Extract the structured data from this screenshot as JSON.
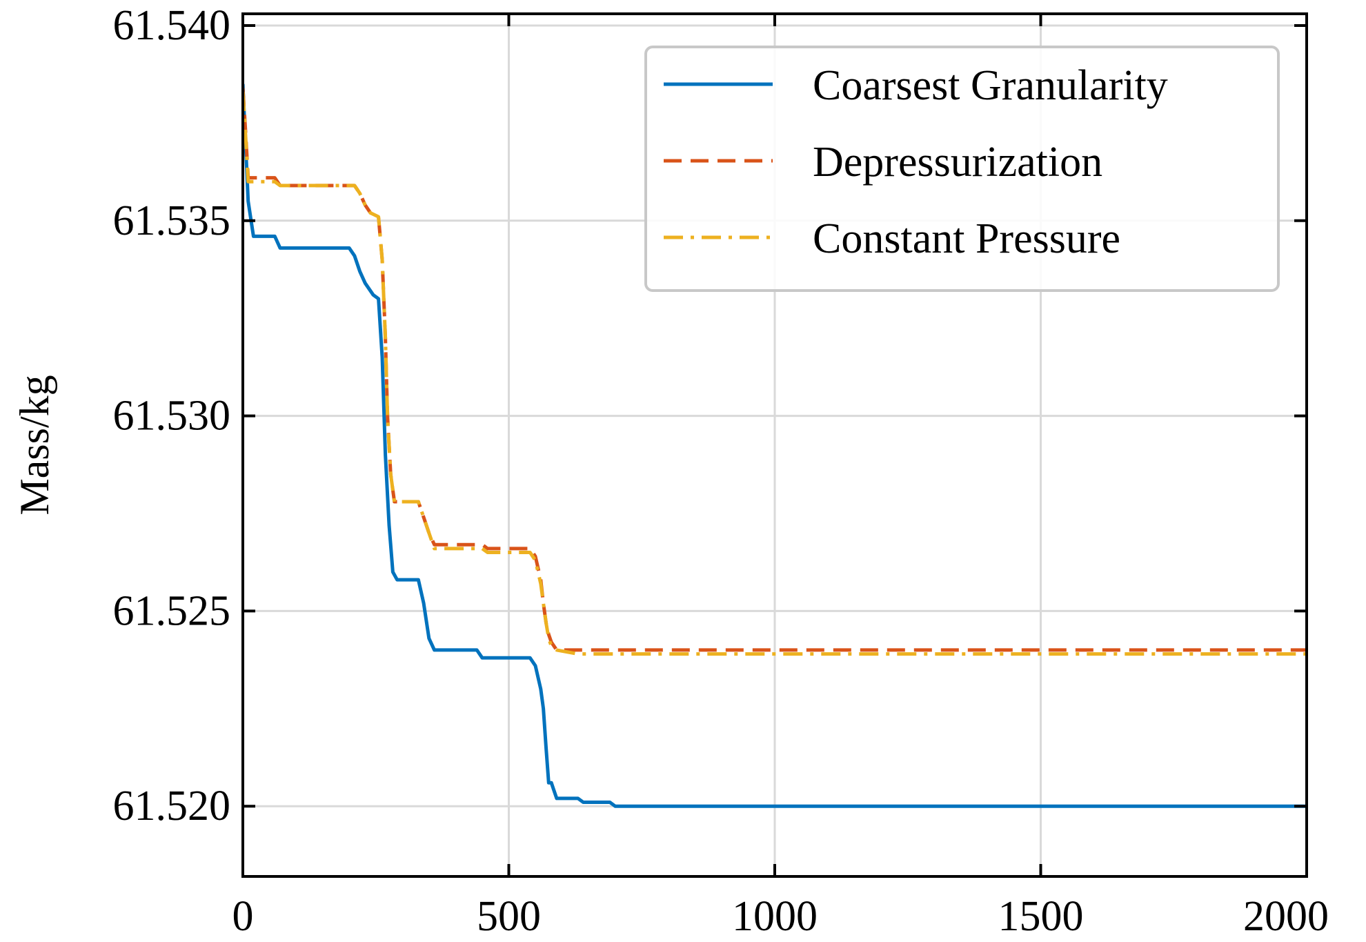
{
  "chart_data": {
    "type": "line",
    "title": "",
    "xlabel": "",
    "ylabel": "Mass/kg",
    "xlim": [
      0,
      2000
    ],
    "ylim": [
      61.5182,
      61.5403
    ],
    "grid": true,
    "legend_position": "top-right",
    "x_ticks": [
      0,
      500,
      1000,
      1500,
      2000
    ],
    "x_tick_labels": [
      "0",
      "500",
      "1000",
      "1500",
      "2000"
    ],
    "y_ticks": [
      61.52,
      61.525,
      61.53,
      61.535,
      61.54
    ],
    "y_tick_labels": [
      "61.520",
      "61.525",
      "61.530",
      "61.535",
      "61.540"
    ],
    "series": [
      {
        "name": "Coarsest Granularity",
        "color": "#0072BD",
        "style": "solid",
        "x": [
          0,
          5,
          10,
          20,
          30,
          60,
          70,
          100,
          150,
          200,
          210,
          220,
          230,
          245,
          255,
          262,
          268,
          275,
          282,
          290,
          300,
          320,
          330,
          340,
          350,
          360,
          400,
          440,
          450,
          480,
          510,
          540,
          550,
          560,
          565,
          570,
          575,
          580,
          585,
          590,
          600,
          630,
          640,
          660,
          690,
          700,
          750,
          1000,
          1500,
          2000
        ],
        "y": [
          61.5385,
          61.537,
          61.5355,
          61.5346,
          61.5346,
          61.5346,
          61.5343,
          61.5343,
          61.5343,
          61.5343,
          61.5341,
          61.5337,
          61.5334,
          61.5331,
          61.533,
          61.5315,
          61.529,
          61.5272,
          61.526,
          61.5258,
          61.5258,
          61.5258,
          61.5258,
          61.5252,
          61.5243,
          61.524,
          61.524,
          61.524,
          61.5238,
          61.5238,
          61.5238,
          61.5238,
          61.5236,
          61.523,
          61.5225,
          61.5215,
          61.5206,
          61.5206,
          61.5204,
          61.5202,
          61.5202,
          61.5202,
          61.5201,
          61.5201,
          61.5201,
          61.52,
          61.52,
          61.52,
          61.52,
          61.52
        ]
      },
      {
        "name": "Depressurization",
        "color": "#D95319",
        "style": "dashed",
        "x": [
          0,
          5,
          10,
          20,
          60,
          70,
          100,
          150,
          210,
          220,
          230,
          240,
          255,
          262,
          268,
          272,
          278,
          285,
          300,
          330,
          340,
          350,
          360,
          400,
          450,
          460,
          500,
          540,
          550,
          560,
          565,
          570,
          575,
          580,
          590,
          630,
          650,
          700,
          1000,
          1500,
          2000
        ],
        "y": [
          61.5384,
          61.5373,
          61.5361,
          61.5361,
          61.5361,
          61.5359,
          61.5359,
          61.5359,
          61.5359,
          61.5357,
          61.5354,
          61.5352,
          61.5351,
          61.534,
          61.532,
          61.53,
          61.5285,
          61.5278,
          61.5278,
          61.5278,
          61.5274,
          61.527,
          61.5267,
          61.5267,
          61.5267,
          61.5266,
          61.5266,
          61.5266,
          61.5264,
          61.5258,
          61.5252,
          61.5247,
          61.5244,
          61.5242,
          61.524,
          61.524,
          61.524,
          61.524,
          61.524,
          61.524,
          61.524
        ]
      },
      {
        "name": "Constant Pressure",
        "color": "#EDB120",
        "style": "dashdot",
        "x": [
          0,
          5,
          10,
          20,
          60,
          70,
          100,
          150,
          210,
          220,
          230,
          240,
          255,
          262,
          268,
          272,
          278,
          285,
          300,
          330,
          340,
          350,
          360,
          400,
          450,
          460,
          500,
          540,
          550,
          560,
          565,
          570,
          575,
          580,
          590,
          630,
          650,
          700,
          1000,
          1500,
          2000
        ],
        "y": [
          61.5383,
          61.5372,
          61.536,
          61.536,
          61.536,
          61.5359,
          61.5359,
          61.5359,
          61.5359,
          61.5357,
          61.5354,
          61.5352,
          61.5351,
          61.534,
          61.532,
          61.53,
          61.5285,
          61.5278,
          61.5278,
          61.5278,
          61.5274,
          61.527,
          61.5266,
          61.5266,
          61.5266,
          61.5265,
          61.5265,
          61.5265,
          61.5263,
          61.5257,
          61.5252,
          61.5247,
          61.5243,
          61.5241,
          61.524,
          61.5239,
          61.5239,
          61.5239,
          61.5239,
          61.5239,
          61.5239
        ]
      }
    ]
  }
}
